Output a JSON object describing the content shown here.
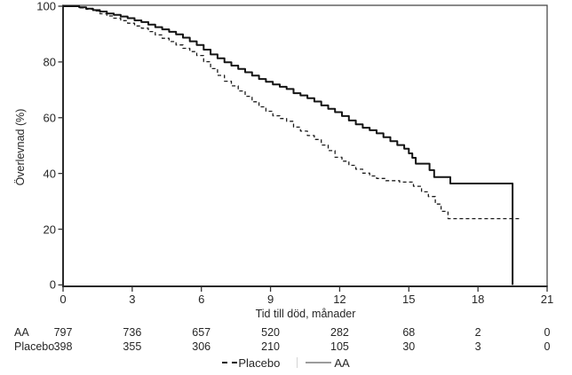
{
  "chart_data": {
    "type": "line",
    "subtype": "kaplan-meier-step",
    "title": "",
    "xlabel": "Tid till död, månader",
    "ylabel": "Överlevnad (%)",
    "xlim": [
      0,
      21
    ],
    "ylim": [
      0,
      100
    ],
    "x_ticks": [
      0,
      3,
      6,
      9,
      12,
      15,
      18,
      21
    ],
    "y_ticks": [
      100,
      80,
      60,
      40,
      20,
      0
    ],
    "grid": false,
    "frame": "full-box",
    "legend_position": "bottom-center",
    "series": [
      {
        "name": "Placebo",
        "line_style": "dashed",
        "color": "#1c1c1c",
        "points": [
          [
            0,
            100
          ],
          [
            0.7,
            99.4
          ],
          [
            1.0,
            98.9
          ],
          [
            1.3,
            98.3
          ],
          [
            1.6,
            97.3
          ],
          [
            1.9,
            96.5
          ],
          [
            2.2,
            95.7
          ],
          [
            2.5,
            94.8
          ],
          [
            2.8,
            93.9
          ],
          [
            3.1,
            92.9
          ],
          [
            3.4,
            92.1
          ],
          [
            3.7,
            90.9
          ],
          [
            4.0,
            89.7
          ],
          [
            4.3,
            88.5
          ],
          [
            4.6,
            87.3
          ],
          [
            4.9,
            86.1
          ],
          [
            5.2,
            84.9
          ],
          [
            5.5,
            83.7
          ],
          [
            5.8,
            82.3
          ],
          [
            6.1,
            80.1
          ],
          [
            6.4,
            77.6
          ],
          [
            6.7,
            75.2
          ],
          [
            7.0,
            73.1
          ],
          [
            7.3,
            71.4
          ],
          [
            7.6,
            69.6
          ],
          [
            7.9,
            67.7
          ],
          [
            8.2,
            65.7
          ],
          [
            8.5,
            63.9
          ],
          [
            8.8,
            62.3
          ],
          [
            9.1,
            60.7
          ],
          [
            9.4,
            59.7
          ],
          [
            9.7,
            58.7
          ],
          [
            10.0,
            56.6
          ],
          [
            10.3,
            55.2
          ],
          [
            10.6,
            53.6
          ],
          [
            10.9,
            52.2
          ],
          [
            11.2,
            50.2
          ],
          [
            11.5,
            48.2
          ],
          [
            11.8,
            45.8
          ],
          [
            12.1,
            44.4
          ],
          [
            12.4,
            42.9
          ],
          [
            12.7,
            41.5
          ],
          [
            13.0,
            40.1
          ],
          [
            13.3,
            39.1
          ],
          [
            13.6,
            38.2
          ],
          [
            14.0,
            37.4
          ],
          [
            14.6,
            36.9
          ],
          [
            15.2,
            35.4
          ],
          [
            15.55,
            33.4
          ],
          [
            15.85,
            31.7
          ],
          [
            16.15,
            29.0
          ],
          [
            16.4,
            26.4
          ],
          [
            16.7,
            23.8
          ],
          [
            19.8,
            23.8
          ]
        ]
      },
      {
        "name": "AA",
        "line_style": "solid",
        "color": "#141414",
        "points": [
          [
            0,
            100
          ],
          [
            0.7,
            99.6
          ],
          [
            1.0,
            99.1
          ],
          [
            1.3,
            98.6
          ],
          [
            1.6,
            98.1
          ],
          [
            1.9,
            97.4
          ],
          [
            2.2,
            96.9
          ],
          [
            2.5,
            96.3
          ],
          [
            2.8,
            95.7
          ],
          [
            3.1,
            94.9
          ],
          [
            3.4,
            94.3
          ],
          [
            3.7,
            93.4
          ],
          [
            4.0,
            92.5
          ],
          [
            4.3,
            91.7
          ],
          [
            4.6,
            90.8
          ],
          [
            4.9,
            89.9
          ],
          [
            5.2,
            88.7
          ],
          [
            5.5,
            87.4
          ],
          [
            5.8,
            86.1
          ],
          [
            6.1,
            84.4
          ],
          [
            6.4,
            82.7
          ],
          [
            6.7,
            81.3
          ],
          [
            7.0,
            79.9
          ],
          [
            7.3,
            78.7
          ],
          [
            7.6,
            77.5
          ],
          [
            7.9,
            76.3
          ],
          [
            8.2,
            75.1
          ],
          [
            8.5,
            73.9
          ],
          [
            8.8,
            72.9
          ],
          [
            9.1,
            71.9
          ],
          [
            9.4,
            71.1
          ],
          [
            9.7,
            70.3
          ],
          [
            10.0,
            68.8
          ],
          [
            10.3,
            68.0
          ],
          [
            10.6,
            67.0
          ],
          [
            10.9,
            65.8
          ],
          [
            11.2,
            64.4
          ],
          [
            11.5,
            63.2
          ],
          [
            11.8,
            62.0
          ],
          [
            12.1,
            60.6
          ],
          [
            12.4,
            59.0
          ],
          [
            12.7,
            57.6
          ],
          [
            13.0,
            56.4
          ],
          [
            13.3,
            55.5
          ],
          [
            13.6,
            54.4
          ],
          [
            13.9,
            53.0
          ],
          [
            14.2,
            51.6
          ],
          [
            14.5,
            50.2
          ],
          [
            14.8,
            48.9
          ],
          [
            15.0,
            47.2
          ],
          [
            15.15,
            45.6
          ],
          [
            15.3,
            43.5
          ],
          [
            15.9,
            41.2
          ],
          [
            16.1,
            38.7
          ],
          [
            16.8,
            36.4
          ],
          [
            19.5,
            36.4
          ],
          [
            19.5,
            0
          ]
        ]
      }
    ]
  },
  "risk_table": {
    "rows": [
      {
        "label": "AA",
        "values": [
          "797",
          "736",
          "657",
          "520",
          "282",
          "68",
          "2",
          "0"
        ]
      },
      {
        "label": "Placebo",
        "values": [
          "398",
          "355",
          "306",
          "210",
          "105",
          "30",
          "3",
          "0"
        ]
      }
    ]
  },
  "legend": {
    "items": [
      {
        "label": "Placebo",
        "style": "dashed"
      },
      {
        "label": "AA",
        "style": "solid"
      }
    ]
  },
  "colors": {
    "curve": "#141414",
    "axis": "#333333",
    "text": "#262626",
    "legend_line_sample": "#9c9c9c",
    "background": "#ffffff"
  }
}
